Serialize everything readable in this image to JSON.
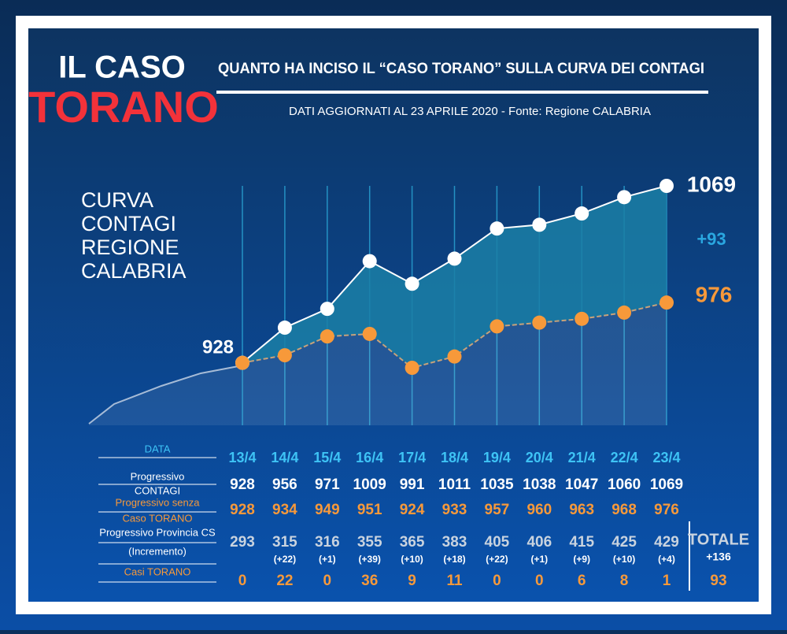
{
  "header": {
    "title_line1": "IL CASO",
    "title_line2": "TORANO",
    "headline": "QUANTO HA INCISO IL “CASO TORANO” SULLA CURVA DEI CONTAGI",
    "subtitle": "DATI AGGIORNATI AL 23 APRILE 2020 - Fonte: Regione CALABRIA"
  },
  "chart_data": {
    "type": "line",
    "side_label": [
      "CURVA",
      "CONTAGI",
      "REGIONE",
      "CALABRIA"
    ],
    "categories": [
      "13/4",
      "14/4",
      "15/4",
      "16/4",
      "17/4",
      "18/4",
      "19/4",
      "20/4",
      "21/4",
      "22/4",
      "23/4"
    ],
    "series": [
      {
        "color": "#ffffff",
        "values": [
          928,
          956,
          971,
          1009,
          991,
          1011,
          1035,
          1038,
          1047,
          1060,
          1069
        ]
      },
      {
        "color": "#f7993a",
        "values": [
          928,
          934,
          949,
          951,
          924,
          933,
          957,
          960,
          963,
          968,
          976
        ]
      }
    ],
    "area_color": "#1b7fa6",
    "difference_label": "+93"
  },
  "table": {
    "row_labels": {
      "date": "DATA",
      "total": [
        "Progressivo",
        "CONTAGI"
      ],
      "without": [
        "Progressivo senza",
        "Caso TORANO"
      ],
      "province": "Progressivo Provincia CS",
      "increment": "(Incremento)",
      "torano": "Casi TORANO"
    },
    "province_values": [
      293,
      315,
      316,
      355,
      365,
      383,
      405,
      406,
      415,
      425,
      429
    ],
    "increments": [
      null,
      "(+22)",
      "(+1)",
      "(+39)",
      "(+10)",
      "(+18)",
      "(+22)",
      "(+1)",
      "(+9)",
      "(+10)",
      "(+4)"
    ],
    "torano_cases": [
      0,
      22,
      0,
      36,
      9,
      11,
      0,
      0,
      6,
      8,
      1
    ],
    "total_heading": "TOTALE",
    "total_increment": "+136",
    "total_cases": 93
  }
}
